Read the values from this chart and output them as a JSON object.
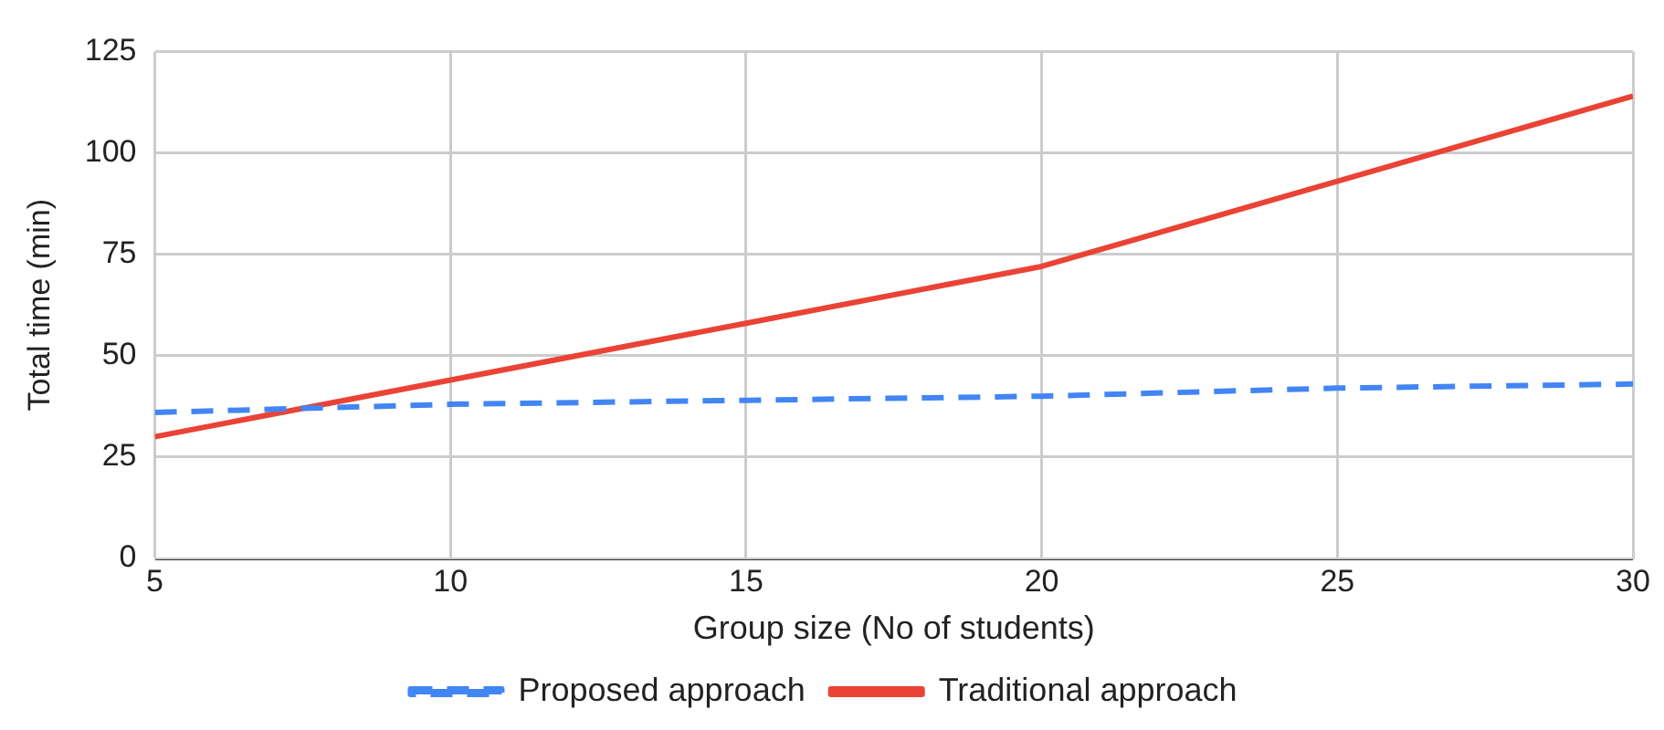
{
  "chart_data": {
    "type": "line",
    "xlabel": "Group size (No of students)",
    "ylabel": "Total time (min)",
    "x": [
      5,
      10,
      15,
      20,
      25,
      30
    ],
    "series": [
      {
        "name": "Proposed approach",
        "color": "#4285f4",
        "line_style": "dashed",
        "values": [
          36,
          38,
          39,
          40,
          42,
          43
        ]
      },
      {
        "name": "Traditional approach",
        "color": "#ea4335",
        "line_style": "solid",
        "values": [
          30,
          44,
          58,
          72,
          93,
          114
        ]
      }
    ],
    "xlim": [
      5,
      30
    ],
    "xticks": [
      5,
      10,
      15,
      20,
      25,
      30
    ],
    "ylim": [
      0,
      125
    ],
    "yticks": [
      0,
      25,
      50,
      75,
      100,
      125
    ],
    "grid": true,
    "legend": "bottom",
    "marker": "none"
  }
}
